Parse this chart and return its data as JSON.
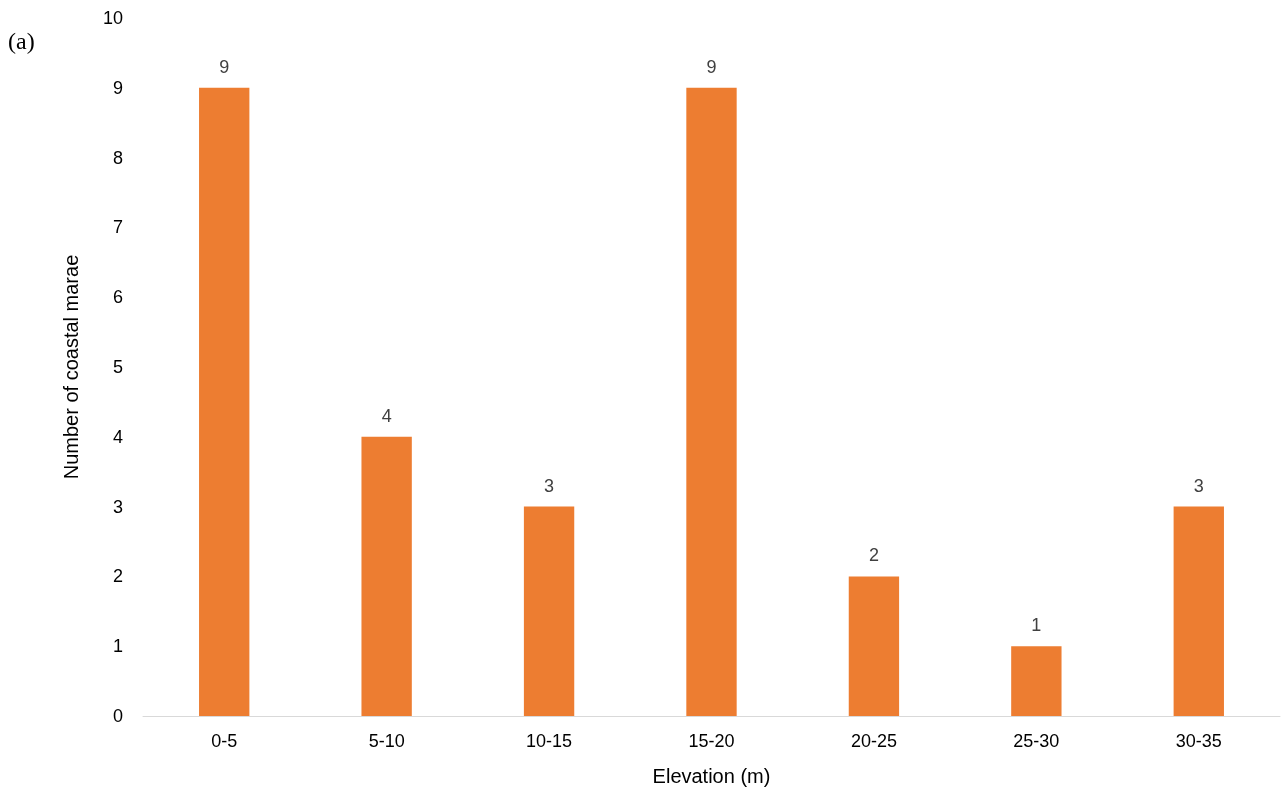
{
  "chart_data": {
    "type": "bar",
    "xlabel": "Elevation (m)",
    "ylabel": "Number of coastal marae",
    "annotations": [
      "(a)"
    ],
    "categories": [
      "0-5",
      "5-10",
      "10-15",
      "15-20",
      "20-25",
      "25-30",
      "30-35"
    ],
    "values": [
      9,
      4,
      3,
      9,
      2,
      1,
      3
    ],
    "color": "#ed7d31",
    "ylim": [
      0,
      10
    ],
    "yticks": [
      0,
      1,
      2,
      3,
      4,
      5,
      6,
      7,
      8,
      9,
      10
    ],
    "grid": false,
    "data_labels": true
  }
}
